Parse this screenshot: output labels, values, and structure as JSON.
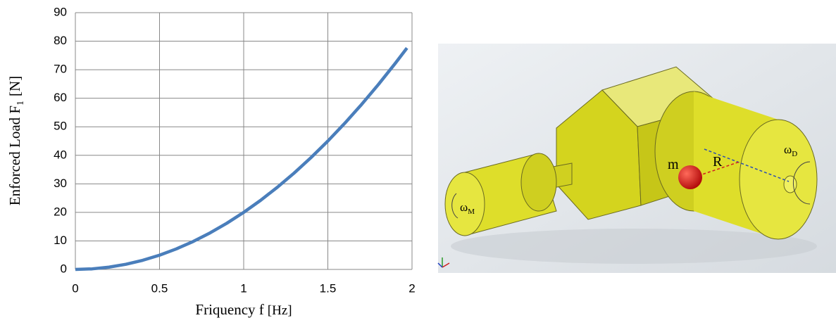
{
  "chart_data": {
    "type": "line",
    "y_label": {
      "text": "Enforced Load  F",
      "sub": "1",
      "unit": "[N]"
    },
    "x_label": {
      "text": "Friquency f",
      "unit": "[Hz]"
    },
    "x": [
      0,
      0.1,
      0.2,
      0.3,
      0.4,
      0.5,
      0.6,
      0.7,
      0.8,
      0.9,
      1,
      1.1,
      1.2,
      1.3,
      1.4,
      1.5,
      1.6,
      1.7,
      1.8,
      1.9,
      1.97
    ],
    "values": [
      0,
      0.2,
      0.8,
      1.8,
      3.2,
      5,
      7.2,
      9.8,
      12.8,
      16.2,
      20,
      24.2,
      28.8,
      33.8,
      39.2,
      45,
      51.2,
      57.8,
      64.8,
      72.2,
      77.6
    ],
    "color": "#4a7ebb",
    "xlim": [
      0,
      2
    ],
    "xticks": [
      0,
      0.5,
      1,
      1.5,
      2
    ],
    "ylim": [
      0,
      90
    ],
    "yticks": [
      0,
      10,
      20,
      30,
      40,
      50,
      60,
      70,
      80,
      90
    ],
    "grid": true
  },
  "diagram": {
    "labels": [
      {
        "text": "m"
      },
      {
        "text": "R"
      },
      {
        "text": "ω",
        "sub": "D"
      },
      {
        "text": "ω",
        "sub": "M"
      }
    ]
  }
}
